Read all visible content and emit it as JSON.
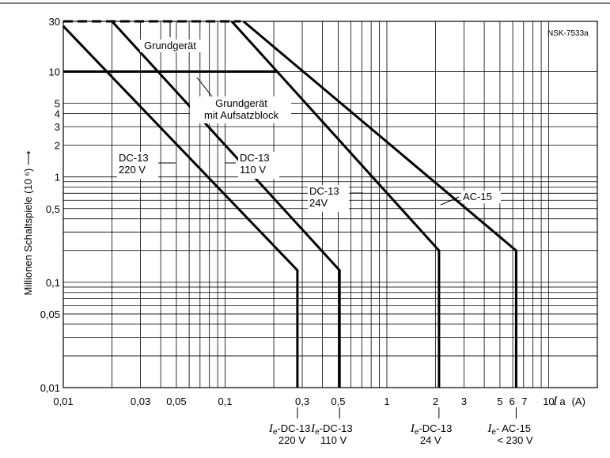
{
  "chart_data": {
    "type": "line",
    "reference": "NSK-7533a",
    "ylabel": "Millionen Schaltspiele (10 ⁶) ⟶",
    "xlabel_symbol": "I",
    "xlabel_sub": "a",
    "xlabel_unit": "(A)",
    "x_scale": "log",
    "y_scale": "log",
    "xlim": [
      0.01,
      20
    ],
    "ylim": [
      0.01,
      30
    ],
    "x_ticks": [
      {
        "value": 0.01,
        "label": "0,01"
      },
      {
        "value": 0.03,
        "label": "0,03"
      },
      {
        "value": 0.05,
        "label": "0,05"
      },
      {
        "value": 0.1,
        "label": "0,1"
      },
      {
        "value": 0.3,
        "label": "0,3"
      },
      {
        "value": 0.5,
        "label": "0,5"
      },
      {
        "value": 1,
        "label": "1"
      },
      {
        "value": 2,
        "label": "2"
      },
      {
        "value": 3,
        "label": "3"
      },
      {
        "value": 5,
        "label": "5"
      },
      {
        "value": 6,
        "label": "6"
      },
      {
        "value": 7,
        "label": "7"
      },
      {
        "value": 10,
        "label": "10"
      }
    ],
    "x_grid": [
      0.01,
      0.02,
      0.03,
      0.04,
      0.05,
      0.06,
      0.07,
      0.08,
      0.09,
      0.1,
      0.2,
      0.3,
      0.4,
      0.5,
      0.6,
      0.7,
      0.8,
      0.9,
      1,
      2,
      3,
      4,
      5,
      6,
      7,
      8,
      9,
      10,
      20
    ],
    "y_ticks": [
      {
        "value": 30,
        "label": "30"
      },
      {
        "value": 10,
        "label": "10"
      },
      {
        "value": 5,
        "label": "5"
      },
      {
        "value": 4,
        "label": "4"
      },
      {
        "value": 3,
        "label": "3"
      },
      {
        "value": 2,
        "label": "2"
      },
      {
        "value": 1,
        "label": "1"
      },
      {
        "value": 0.5,
        "label": "0,5"
      },
      {
        "value": 0.1,
        "label": "0,1"
      },
      {
        "value": 0.05,
        "label": "0,05"
      },
      {
        "value": 0.01,
        "label": "0,01"
      }
    ],
    "y_grid": [
      0.01,
      0.02,
      0.03,
      0.04,
      0.05,
      0.06,
      0.07,
      0.08,
      0.09,
      0.1,
      0.2,
      0.3,
      0.4,
      0.5,
      0.6,
      0.7,
      0.8,
      0.9,
      1,
      2,
      3,
      4,
      5,
      10,
      30
    ],
    "grid": true,
    "series": [
      {
        "name": "DC-13 220 V",
        "points": [
          [
            0.01,
            27
          ],
          [
            0.28,
            0.13
          ],
          [
            0.28,
            0.01
          ]
        ]
      },
      {
        "name": "DC-13 110 V",
        "points": [
          [
            0.02,
            30
          ],
          [
            0.51,
            0.13
          ],
          [
            0.51,
            0.01
          ]
        ]
      },
      {
        "name": "DC-13 24V",
        "points": [
          [
            0.11,
            30
          ],
          [
            2.1,
            0.2
          ],
          [
            2.1,
            0.01
          ]
        ]
      },
      {
        "name": "AC-15",
        "points": [
          [
            0.13,
            30
          ],
          [
            6.3,
            0.2
          ],
          [
            6.3,
            0.01
          ]
        ]
      }
    ],
    "limit_lines": [
      {
        "name": "Grundgerät",
        "y": 30,
        "x_from": 0.01,
        "x_to": 0.125,
        "style": "dashed"
      },
      {
        "name": "Grundgerät mit Aufsatzblock",
        "y": 10,
        "x_from": 0.01,
        "x_to": 0.21,
        "style": "solid"
      }
    ],
    "annotations": [
      {
        "name": "grundgeraet",
        "lines": [
          "Grundgerät"
        ],
        "ax": 0.118,
        "ay": 26
      },
      {
        "name": "grundgeraet-aufsatzblock",
        "lines": [
          "Grundgerät",
          "mit Aufsatzblock"
        ],
        "ax": 0.12,
        "ay": 9.5
      },
      {
        "name": "dc13-220",
        "lines": [
          "DC-13",
          "220 V"
        ],
        "ax": 0.06,
        "ay": 1.7
      },
      {
        "name": "dc13-110",
        "lines": [
          "DC-13",
          "110 V"
        ],
        "ax": 0.14,
        "ay": 1.7
      },
      {
        "name": "dc13-24",
        "lines": [
          "DC-13",
          "24V"
        ],
        "ax": 0.75,
        "ay": 0.9
      },
      {
        "name": "ac15",
        "lines": [
          "AC-15"
        ],
        "ax": 2.6,
        "ay": 0.58
      }
    ],
    "bottom_labels": [
      {
        "name": "ie-dc13-220",
        "x": 0.28,
        "prefix": "I",
        "sub": "e",
        "suffix": "-DC-13",
        "line2": "220 V"
      },
      {
        "name": "ie-dc13-110",
        "x": 0.51,
        "prefix": "I",
        "sub": "e",
        "suffix": "-DC-13",
        "line2": "110 V"
      },
      {
        "name": "ie-dc13-24",
        "x": 2.1,
        "prefix": "I",
        "sub": "e",
        "suffix": "-DC-13",
        "line2": "24 V"
      },
      {
        "name": "ie-ac15",
        "x": 6.3,
        "prefix": "I",
        "sub": "e",
        "suffix": "- AC-15",
        "line2": "< 230 V"
      }
    ]
  }
}
